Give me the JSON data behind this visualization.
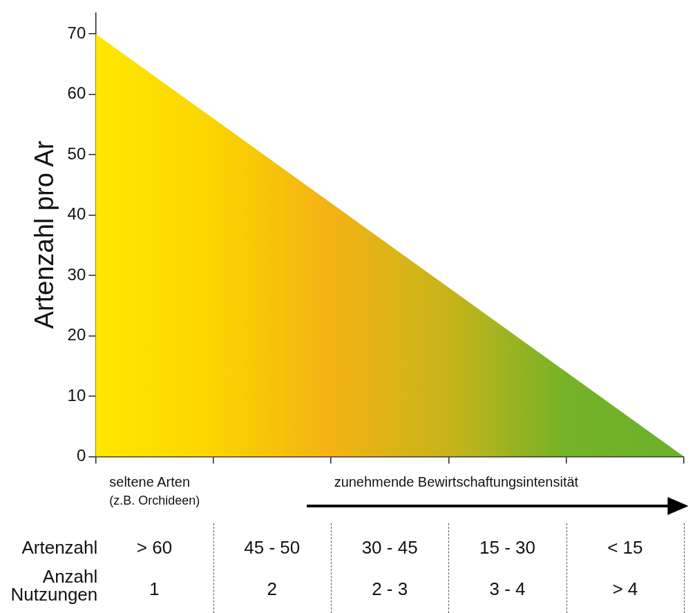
{
  "chart_data": {
    "type": "area",
    "ylabel": "Artenzahl pro Ar",
    "categories": [
      null,
      null,
      null,
      null,
      null,
      null
    ],
    "series": [
      {
        "values": [
          70,
          56,
          42,
          28,
          14,
          0
        ],
        "colors": [
          "#ffe800",
          "#fbd400",
          "#f3b214",
          "#c8b41a",
          "#74b228",
          "#6cb02a"
        ]
      }
    ],
    "ylim": [
      0,
      73.5
    ],
    "yticks": [
      0,
      10,
      20,
      30,
      40,
      50,
      60,
      70
    ],
    "grid": false,
    "legend": false,
    "marker": "none",
    "tick_labels": "y",
    "annotations": [
      "seltene Arten",
      "(z.B. Orchideen)",
      "zunehmende Bewirtschaftungsintensität",
      "Artenzahl",
      "> 60",
      "45 - 50",
      "30 - 45",
      "15 - 30",
      "< 15",
      "Anzahl Nutzungen",
      "1",
      "2",
      "2 - 3",
      "3 - 4",
      "> 4"
    ]
  }
}
